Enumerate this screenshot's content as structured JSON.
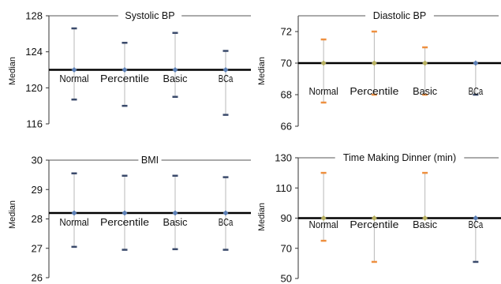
{
  "chart_data": [
    {
      "type": "range",
      "title": "Systolic BP",
      "ylabel": "Median",
      "ylim": [
        116,
        128
      ],
      "yticks": [
        116,
        120,
        124,
        128
      ],
      "categories": [
        "Normal",
        "Percentile",
        "Basic",
        "BCa"
      ],
      "reference": 122,
      "series": [
        {
          "median": [
            122,
            122,
            122,
            122
          ],
          "low": [
            118.7,
            118.0,
            119.0,
            117.0
          ],
          "high": [
            126.6,
            125.0,
            126.1,
            124.1
          ]
        }
      ]
    },
    {
      "type": "range",
      "title": "Diastolic BP",
      "ylabel": "Median",
      "ylim": [
        66,
        73
      ],
      "yticks": [
        66,
        68,
        70,
        72
      ],
      "categories": [
        "Normal",
        "Percentile",
        "Basic",
        "BCa"
      ],
      "reference": 70,
      "series": [
        {
          "median": [
            70,
            70,
            70,
            70
          ],
          "low": [
            67.5,
            68.0,
            68.0,
            68.0
          ],
          "high": [
            71.5,
            72.0,
            71.0,
            70.0
          ]
        }
      ]
    },
    {
      "type": "range",
      "title": "BMI",
      "ylabel": "Median",
      "ylim": [
        26,
        30
      ],
      "yticks": [
        26,
        27,
        28,
        29,
        30
      ],
      "categories": [
        "Normal",
        "Percentile",
        "Basic",
        "BCa"
      ],
      "reference": 28.2,
      "series": [
        {
          "median": [
            28.2,
            28.2,
            28.2,
            28.2
          ],
          "low": [
            27.05,
            26.95,
            26.97,
            26.95
          ],
          "high": [
            29.55,
            29.47,
            29.47,
            29.42
          ]
        }
      ]
    },
    {
      "type": "range",
      "title": "Time Making Dinner (min)",
      "ylabel": "Median",
      "ylim": [
        50,
        130
      ],
      "yticks": [
        50,
        70,
        90,
        110,
        130
      ],
      "categories": [
        "Normal",
        "Percentile",
        "Basic",
        "BCa"
      ],
      "reference": 90,
      "series": [
        {
          "median": [
            90,
            90,
            90,
            90
          ],
          "low": [
            75,
            61,
            90,
            61
          ],
          "high": [
            120,
            90,
            120,
            90
          ]
        }
      ]
    }
  ],
  "colors": {
    "whisker": "#b8b8b8",
    "median_marker": "#5b7fb5",
    "bound_dark": "#3a4a6b",
    "bound_orange": "#ee9040",
    "median_olive": "#b7b060",
    "reference_line": "#000000"
  }
}
